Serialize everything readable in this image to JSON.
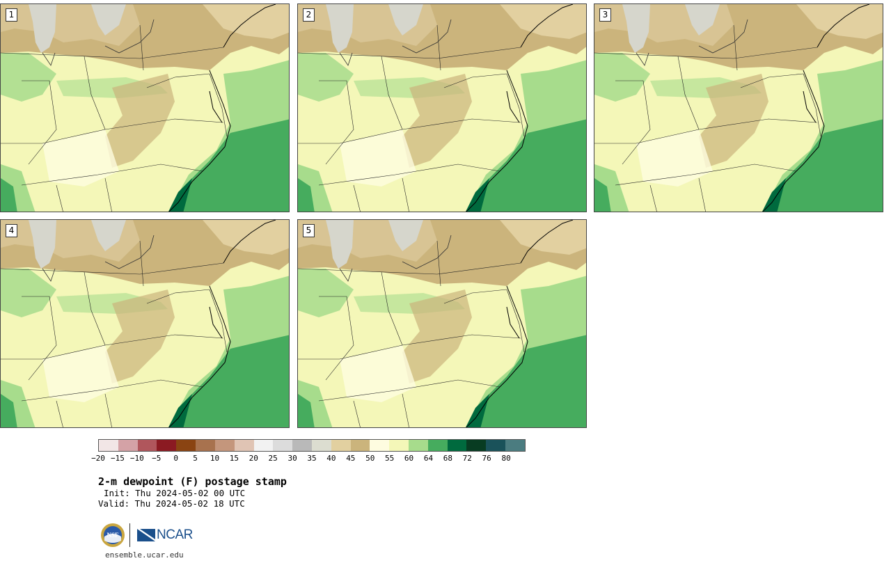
{
  "panels": [
    {
      "label": "1"
    },
    {
      "label": "2"
    },
    {
      "label": "3"
    },
    {
      "label": "4"
    },
    {
      "label": "5"
    }
  ],
  "colorbar": {
    "colors": [
      "#f2e6e6",
      "#d4a2a6",
      "#b0565c",
      "#8b1a22",
      "#8a4412",
      "#a8724e",
      "#c4967c",
      "#e0c4b4",
      "#f2f2f2",
      "#dcdcdc",
      "#b9b9b9",
      "#dcddd0",
      "#e2d0a0",
      "#cbb47c",
      "#fefce0",
      "#f4f7b8",
      "#a7dc8c",
      "#46ac5e",
      "#006a3e",
      "#083c22",
      "#1a525a",
      "#4b7c80"
    ],
    "ticks": [
      "−20",
      "−15",
      "−10",
      "−5",
      "0",
      "5",
      "10",
      "15",
      "20",
      "25",
      "30",
      "35",
      "40",
      "45",
      "50",
      "55",
      "60",
      "64",
      "68",
      "72",
      "76",
      "80"
    ]
  },
  "title": "2-m dewpoint (F) postage stamp",
  "init": "Init: Thu 2024-05-02 00 UTC",
  "valid": "Valid: Thu 2024-05-02 18 UTC",
  "logos": {
    "nsf": "NSF",
    "ncar": "NCAR"
  },
  "site": "ensemble.ucar.edu"
}
